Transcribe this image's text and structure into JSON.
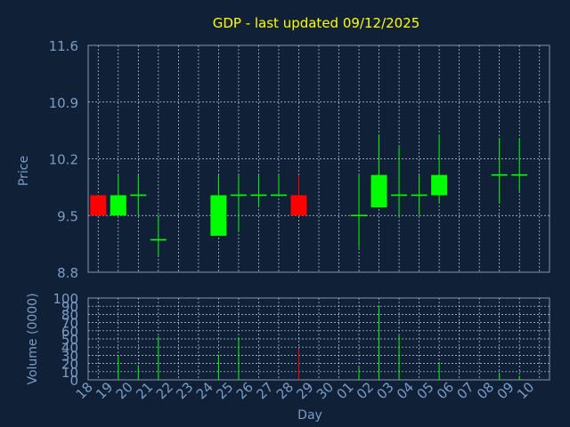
{
  "chart_data": [
    {
      "type": "candlestick",
      "title": "GDP - last updated 09/12/2025",
      "ylabel": "Price",
      "ylim": [
        8.8,
        11.6
      ],
      "yticks": [
        "11.6",
        "10.9",
        "10.2",
        "9.5",
        "8.8"
      ],
      "grid": true,
      "categories": [
        "18",
        "19",
        "20",
        "21",
        "22",
        "23",
        "24",
        "25",
        "26",
        "27",
        "28",
        "29",
        "30",
        "01",
        "02",
        "03",
        "04",
        "05",
        "06",
        "07",
        "08",
        "09",
        "10"
      ],
      "candles": [
        {
          "x": "18",
          "open": 9.75,
          "close": 9.5,
          "high": 9.75,
          "low": 9.5
        },
        {
          "x": "19",
          "open": 9.5,
          "close": 9.75,
          "high": 10.0,
          "low": 9.5
        },
        {
          "x": "20",
          "open": 9.75,
          "close": 9.75,
          "high": 10.0,
          "low": 9.5
        },
        {
          "x": "21",
          "open": 9.2,
          "close": 9.2,
          "high": 9.5,
          "low": 9.0
        },
        {
          "x": "24",
          "open": 9.25,
          "close": 9.75,
          "high": 10.0,
          "low": 9.25
        },
        {
          "x": "25",
          "open": 9.75,
          "close": 9.75,
          "high": 10.0,
          "low": 9.3
        },
        {
          "x": "26",
          "open": 9.75,
          "close": 9.75,
          "high": 10.0,
          "low": 9.6
        },
        {
          "x": "27",
          "open": 9.75,
          "close": 9.75,
          "high": 10.0,
          "low": 9.75
        },
        {
          "x": "28",
          "open": 9.75,
          "close": 9.5,
          "high": 10.0,
          "low": 9.5
        },
        {
          "x": "01",
          "open": 9.5,
          "close": 9.5,
          "high": 10.0,
          "low": 9.1
        },
        {
          "x": "02",
          "open": 9.6,
          "close": 10.0,
          "high": 10.5,
          "low": 9.6
        },
        {
          "x": "03",
          "open": 9.75,
          "close": 9.75,
          "high": 10.35,
          "low": 9.5
        },
        {
          "x": "04",
          "open": 9.75,
          "close": 9.75,
          "high": 10.0,
          "low": 9.5
        },
        {
          "x": "05",
          "open": 9.75,
          "close": 10.0,
          "high": 10.5,
          "low": 9.65
        },
        {
          "x": "08",
          "open": 10.0,
          "close": 10.0,
          "high": 10.45,
          "low": 9.65
        },
        {
          "x": "09",
          "open": 10.0,
          "close": 10.0,
          "high": 10.45,
          "low": 9.8
        }
      ]
    },
    {
      "type": "bar",
      "ylabel": "Volume (0000)",
      "xlabel": "Day",
      "ylim": [
        0,
        100
      ],
      "yticks": [
        "100",
        "90",
        "80",
        "70",
        "60",
        "50",
        "40",
        "30",
        "20",
        "10",
        "0"
      ],
      "grid": true,
      "categories": [
        "18",
        "19",
        "20",
        "21",
        "22",
        "23",
        "24",
        "25",
        "26",
        "27",
        "28",
        "29",
        "30",
        "01",
        "02",
        "03",
        "04",
        "05",
        "06",
        "07",
        "08",
        "09",
        "10"
      ],
      "bars": [
        {
          "x": "18",
          "value": 0,
          "color": "#ff0000"
        },
        {
          "x": "19",
          "value": 30,
          "color": "#00ff00"
        },
        {
          "x": "20",
          "value": 18,
          "color": "#00ff00"
        },
        {
          "x": "21",
          "value": 53,
          "color": "#00ff00"
        },
        {
          "x": "24",
          "value": 31,
          "color": "#00ff00"
        },
        {
          "x": "25",
          "value": 52,
          "color": "#00ff00"
        },
        {
          "x": "26",
          "value": 0,
          "color": "#00ff00"
        },
        {
          "x": "27",
          "value": 0,
          "color": "#00ff00"
        },
        {
          "x": "28",
          "value": 38,
          "color": "#ff0000"
        },
        {
          "x": "01",
          "value": 15,
          "color": "#00ff00"
        },
        {
          "x": "02",
          "value": 91,
          "color": "#00ff00"
        },
        {
          "x": "03",
          "value": 56,
          "color": "#00ff00"
        },
        {
          "x": "05",
          "value": 20,
          "color": "#00ff00"
        },
        {
          "x": "08",
          "value": 8,
          "color": "#00ff00"
        },
        {
          "x": "09",
          "value": 5,
          "color": "#00ff00"
        }
      ]
    }
  ],
  "colors": {
    "background": "#102036",
    "grid": "#c8d0e0",
    "axis_text": "#7a9cc6",
    "title": "#ffff00",
    "up": "#00ff00",
    "down": "#ff0000"
  }
}
